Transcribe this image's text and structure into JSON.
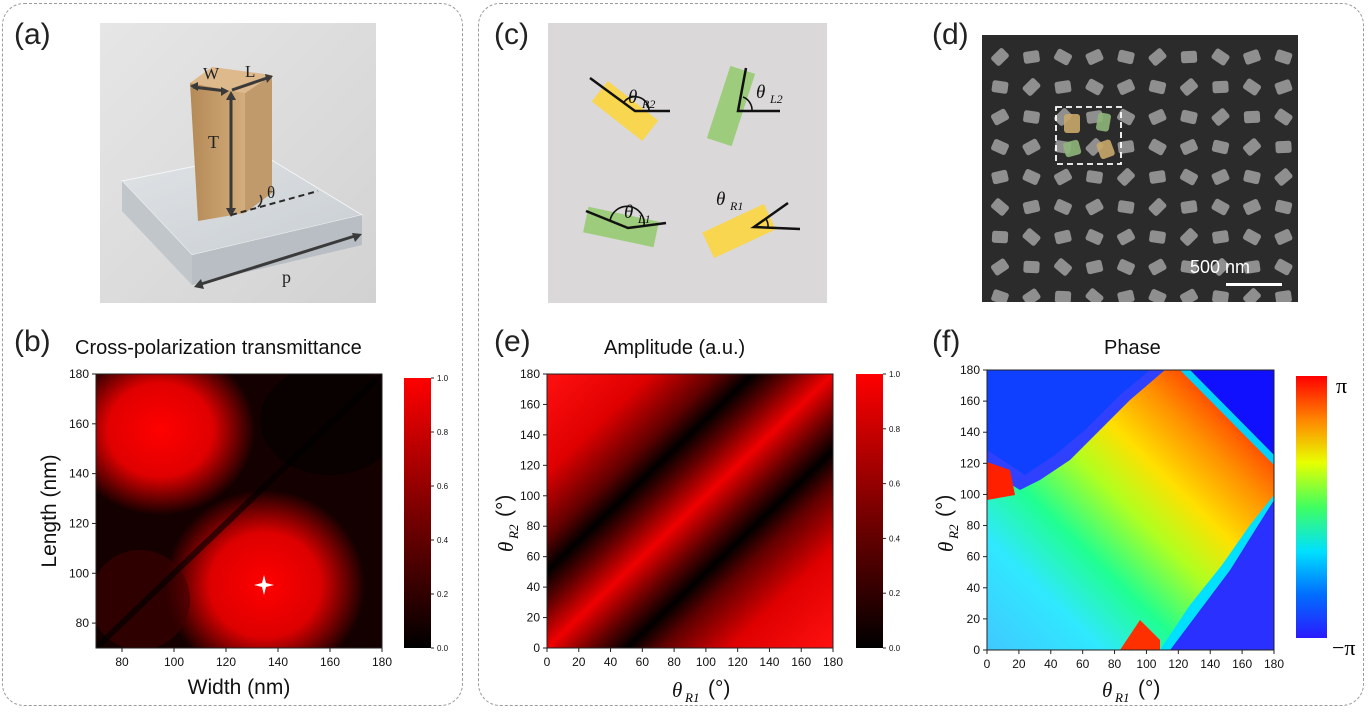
{
  "labels": {
    "a": "(a)",
    "b": "(b)",
    "c": "(c)",
    "d": "(d)",
    "e": "(e)",
    "f": "(f)"
  },
  "panel_a": {
    "W": "W",
    "L": "L",
    "T": "T",
    "theta": "θ",
    "p": "p"
  },
  "panel_c": {
    "theta_sym": "θ",
    "subs": [
      "R2",
      "L2",
      "L1",
      "R1"
    ]
  },
  "panel_d": {
    "scale_text": "500 nm"
  },
  "colors": {
    "rect_yellow": "#f8d650",
    "rect_green": "#9dcc7c",
    "block_gold": "#c9a371",
    "sem_bg": "#2b2b2b",
    "cross_bg": "#dad8d9"
  },
  "chart_data": [
    {
      "type": "heatmap",
      "title": "Cross-polarization transmittance",
      "xlabel": "Width (nm)",
      "ylabel": "Length (nm)",
      "xlim": [
        70,
        180
      ],
      "ylim": [
        70,
        180
      ],
      "xticks": [
        "80",
        "100",
        "120",
        "140",
        "160",
        "180"
      ],
      "yticks": [
        "80",
        "100",
        "120",
        "140",
        "160",
        "180"
      ],
      "colorbar_ticks": [
        "0.0",
        "0.2",
        "0.4",
        "0.6",
        "0.8",
        "1.0"
      ],
      "colormap": "black-red",
      "marker": {
        "x": 134,
        "y": 96,
        "symbol": "star"
      }
    },
    {
      "type": "heatmap",
      "title": "Amplitude (a.u.)",
      "xlabel": "θR1 (°)",
      "ylabel": "θR2 (°)",
      "xlim": [
        0,
        180
      ],
      "ylim": [
        0,
        180
      ],
      "xticks": [
        "0",
        "20",
        "40",
        "60",
        "80",
        "100",
        "120",
        "140",
        "160",
        "180"
      ],
      "yticks": [
        "0",
        "20",
        "40",
        "60",
        "80",
        "100",
        "120",
        "140",
        "160",
        "180"
      ],
      "colorbar_ticks": [
        "0.0",
        "0.2",
        "0.4",
        "0.6",
        "0.8",
        "1.0"
      ],
      "colormap": "black-red",
      "zero_lines": [
        {
          "intercept": 90
        },
        {
          "intercept": -90
        }
      ]
    },
    {
      "type": "heatmap",
      "title": "Phase",
      "xlabel": "θR1 (°)",
      "ylabel": "θR2 (°)",
      "xlim": [
        0,
        180
      ],
      "ylim": [
        0,
        180
      ],
      "xticks": [
        "0",
        "20",
        "40",
        "60",
        "80",
        "100",
        "120",
        "140",
        "160",
        "180"
      ],
      "yticks": [
        "0",
        "20",
        "40",
        "60",
        "80",
        "100",
        "120",
        "140",
        "160",
        "180"
      ],
      "colorbar_ticks": [
        "π",
        "−π"
      ],
      "colormap": "jet"
    }
  ]
}
